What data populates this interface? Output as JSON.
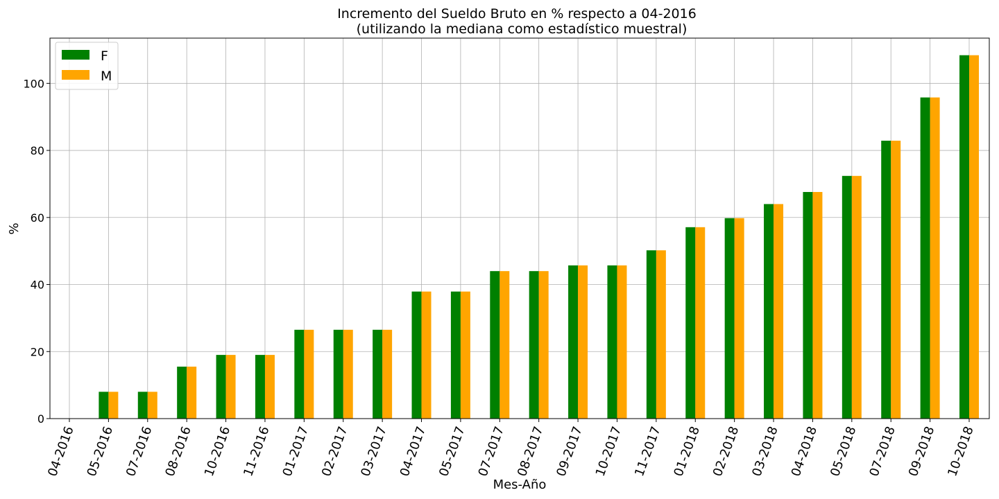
{
  "chart_data": {
    "type": "bar",
    "title_line1": "Incremento del Sueldo Bruto en % respecto a 04-2016",
    "title_line2": "(utilizando la mediana como estadístico muestral)",
    "xlabel": "Mes-Año",
    "ylabel": "%",
    "ylim": [
      0,
      113.5
    ],
    "yticks": [
      0,
      20,
      40,
      60,
      80,
      100
    ],
    "grid": true,
    "legend_position": "top-left",
    "categories": [
      "04-2016",
      "05-2016",
      "07-2016",
      "08-2016",
      "10-2016",
      "11-2016",
      "01-2017",
      "02-2017",
      "03-2017",
      "04-2017",
      "05-2017",
      "07-2017",
      "08-2017",
      "09-2017",
      "10-2017",
      "11-2017",
      "01-2018",
      "02-2018",
      "03-2018",
      "04-2018",
      "05-2018",
      "07-2018",
      "09-2018",
      "10-2018"
    ],
    "series": [
      {
        "name": "F",
        "color": "#008000",
        "values": [
          0,
          8.0,
          8.0,
          15.5,
          19.0,
          19.0,
          26.5,
          26.5,
          26.5,
          37.9,
          37.9,
          44.0,
          44.0,
          45.7,
          45.7,
          50.2,
          57.1,
          59.8,
          64.0,
          67.6,
          72.4,
          82.9,
          95.8,
          108.4
        ]
      },
      {
        "name": "M",
        "color": "#FFA500",
        "values": [
          0,
          8.0,
          8.0,
          15.5,
          19.0,
          19.0,
          26.5,
          26.5,
          26.5,
          37.9,
          37.9,
          44.0,
          44.0,
          45.7,
          45.7,
          50.2,
          57.1,
          59.8,
          64.0,
          67.6,
          72.4,
          82.9,
          95.8,
          108.4
        ]
      }
    ]
  }
}
